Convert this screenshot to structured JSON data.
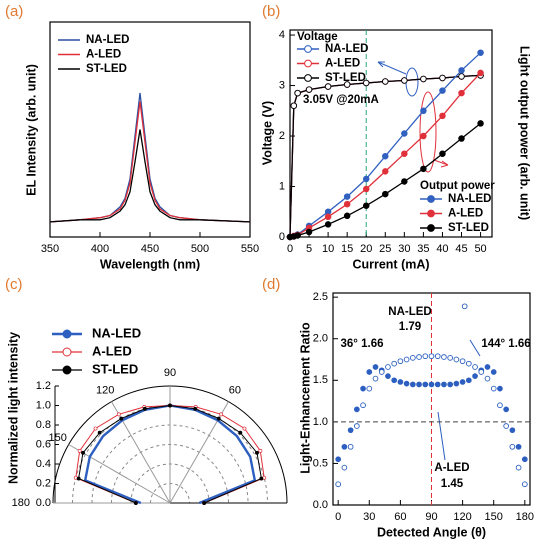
{
  "chart_data": [
    {
      "type": "line",
      "label": "(a)",
      "xlabel": "Wavelength (nm)",
      "ylabel": "EL Intensity (arb. unit)",
      "x": [
        350,
        380,
        400,
        410,
        420,
        425,
        430,
        435,
        440,
        445,
        450,
        455,
        460,
        470,
        480,
        500,
        550
      ],
      "xlim": [
        350,
        550
      ],
      "xticks": [
        350,
        400,
        450,
        500,
        550
      ],
      "ylim": [
        0,
        1
      ],
      "series": [
        {
          "name": "NA-LED",
          "color": "#2c4f9e",
          "values": [
            0.07,
            0.08,
            0.09,
            0.1,
            0.14,
            0.18,
            0.27,
            0.47,
            0.67,
            0.47,
            0.27,
            0.18,
            0.14,
            0.1,
            0.09,
            0.08,
            0.07
          ]
        },
        {
          "name": "A-LED",
          "color": "#e0303a",
          "values": [
            0.07,
            0.08,
            0.09,
            0.1,
            0.13,
            0.17,
            0.25,
            0.44,
            0.63,
            0.44,
            0.25,
            0.17,
            0.13,
            0.1,
            0.09,
            0.08,
            0.07
          ]
        },
        {
          "name": "ST-LED",
          "color": "#000000",
          "values": [
            0.07,
            0.08,
            0.08,
            0.09,
            0.12,
            0.15,
            0.21,
            0.35,
            0.5,
            0.35,
            0.21,
            0.15,
            0.12,
            0.09,
            0.08,
            0.08,
            0.07
          ]
        }
      ]
    },
    {
      "type": "line",
      "label": "(b)",
      "xlabel": "Current (mA)",
      "ylabel": "Voltage (V)",
      "y2label": "Light output power (arb. unit)",
      "x": [
        0,
        1,
        2,
        5,
        10,
        15,
        20,
        25,
        30,
        35,
        40,
        45,
        50
      ],
      "xlim": [
        0,
        53
      ],
      "xticks": [
        0,
        5,
        10,
        15,
        20,
        25,
        30,
        35,
        40,
        45,
        50
      ],
      "ylim": [
        0,
        4.1
      ],
      "yticks": [
        0,
        1,
        2,
        3,
        4
      ],
      "y2lim": [
        0,
        4.1
      ],
      "vline": {
        "x": 20,
        "color": "#2aa876"
      },
      "legend_title": "Voltage",
      "legend2_title": "Output power",
      "annotations": [
        "3.05V @20mA"
      ],
      "series": [
        {
          "name": "NA-LED",
          "color": "#3060c0",
          "marker": "open",
          "values": [
            0,
            2.6,
            2.85,
            2.92,
            2.98,
            3.02,
            3.05,
            3.08,
            3.1,
            3.13,
            3.15,
            3.18,
            3.2
          ]
        },
        {
          "name": "A-LED",
          "color": "#e0303a",
          "marker": "open",
          "values": [
            0,
            2.6,
            2.85,
            2.92,
            2.98,
            3.02,
            3.05,
            3.08,
            3.1,
            3.13,
            3.15,
            3.18,
            3.2
          ]
        },
        {
          "name": "ST-LED",
          "color": "#000000",
          "marker": "open",
          "values": [
            0,
            2.6,
            2.85,
            2.92,
            2.98,
            3.02,
            3.05,
            3.08,
            3.1,
            3.13,
            3.15,
            3.18,
            3.2
          ]
        },
        {
          "name": "NA-LED",
          "color": "#3060c0",
          "marker": "filled",
          "axis": "y2",
          "values": [
            0,
            0.02,
            0.05,
            0.22,
            0.5,
            0.8,
            1.15,
            1.6,
            2.05,
            2.5,
            2.9,
            3.3,
            3.65
          ]
        },
        {
          "name": "A-LED",
          "color": "#e0303a",
          "marker": "filled",
          "axis": "y2",
          "values": [
            0,
            0.02,
            0.04,
            0.18,
            0.4,
            0.65,
            0.95,
            1.3,
            1.65,
            2.0,
            2.4,
            2.85,
            3.25
          ]
        },
        {
          "name": "ST-LED",
          "color": "#000000",
          "marker": "filled",
          "axis": "y2",
          "values": [
            0,
            0.01,
            0.03,
            0.1,
            0.25,
            0.42,
            0.62,
            0.85,
            1.1,
            1.35,
            1.65,
            1.95,
            2.25
          ]
        }
      ]
    },
    {
      "type": "polar",
      "label": "(c)",
      "ylabel": "Normalized light intensity",
      "angles": [
        0,
        15,
        30,
        45,
        60,
        75,
        90,
        105,
        120,
        135,
        150,
        165,
        180
      ],
      "rlim": [
        0,
        1.2
      ],
      "rticks": [
        {
          "value": 0,
          "label": "0.0"
        },
        0.2,
        0.4,
        0.6,
        0.8,
        {
          "value": 1,
          "label": "1.0"
        },
        1.2
      ],
      "angle_ticks": [
        60,
        90,
        120,
        150,
        180
      ],
      "series": [
        {
          "name": "NA-LED",
          "color": "#2c5fc0",
          "marker": "filled",
          "values": [
            0.3,
            0.9,
            0.95,
            0.97,
            0.98,
            0.99,
            1.0,
            0.99,
            0.98,
            0.97,
            0.95,
            0.9,
            0.3
          ]
        },
        {
          "name": "A-LED",
          "color": "#e0303a",
          "marker": "open",
          "values": [
            0.35,
            1.0,
            1.07,
            1.08,
            1.05,
            1.02,
            1.0,
            1.02,
            1.05,
            1.08,
            1.07,
            1.0,
            0.35
          ]
        },
        {
          "name": "ST-LED",
          "color": "#000000",
          "marker": "filled",
          "values": [
            0.35,
            0.97,
            1.03,
            1.02,
            1.0,
            1.0,
            1.0,
            1.0,
            1.0,
            1.02,
            1.03,
            0.97,
            0.35
          ]
        }
      ]
    },
    {
      "type": "scatter",
      "label": "(d)",
      "xlabel": "Detected Angle (θ)",
      "ylabel": "Light-Enhancement Ratio",
      "x": [
        0,
        6,
        12,
        18,
        24,
        30,
        36,
        42,
        48,
        54,
        60,
        66,
        72,
        78,
        84,
        90,
        96,
        102,
        108,
        114,
        120,
        126,
        132,
        138,
        144,
        150,
        156,
        162,
        168,
        174,
        180
      ],
      "xlim": [
        -5,
        185
      ],
      "xticks": [
        0,
        30,
        60,
        90,
        120,
        150,
        180
      ],
      "ylim": [
        0,
        2.55
      ],
      "yticks": [
        {
          "value": 0,
          "label": "0.0"
        },
        0.5,
        {
          "value": 1,
          "label": "1.0"
        },
        1.5,
        {
          "value": 2,
          "label": "2.0"
        },
        2.5
      ],
      "hline": {
        "y": 1,
        "color": "#444444"
      },
      "vline": {
        "x": 90,
        "color": "#e0303a"
      },
      "annotations": [
        "NA-LED",
        "1.79",
        "36° 1.66",
        "144° 1.66",
        "A-LED",
        "1.45"
      ],
      "series": [
        {
          "color": "#2c5fc0",
          "marker": "filled",
          "values": [
            0.55,
            0.7,
            0.9,
            1.15,
            1.4,
            1.6,
            1.66,
            1.62,
            1.55,
            1.5,
            1.48,
            1.46,
            1.45,
            1.45,
            1.45,
            1.45,
            1.45,
            1.45,
            1.45,
            1.46,
            1.48,
            1.5,
            1.55,
            1.62,
            1.66,
            1.6,
            1.4,
            1.15,
            0.9,
            0.7,
            0.55
          ]
        },
        {
          "color": "#2c5fc0",
          "marker": "open",
          "values": [
            0.25,
            0.45,
            0.7,
            0.95,
            1.2,
            1.4,
            1.52,
            1.6,
            1.66,
            1.7,
            1.73,
            1.75,
            1.77,
            1.78,
            1.79,
            1.79,
            1.79,
            1.78,
            1.77,
            1.75,
            1.73,
            1.7,
            1.66,
            1.6,
            1.52,
            1.4,
            1.2,
            0.95,
            0.7,
            0.45,
            0.25
          ]
        },
        {
          "color": "#2c5fc0",
          "marker": "open",
          "x": [
            122
          ],
          "values": [
            2.39
          ]
        }
      ]
    }
  ]
}
